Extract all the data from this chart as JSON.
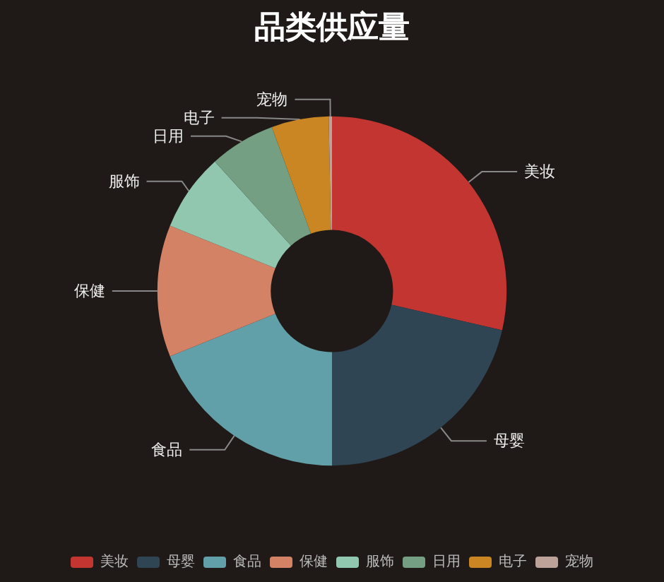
{
  "chart_data": {
    "type": "donut",
    "title": "品类供应量",
    "categories": [
      "美妆",
      "母婴",
      "食品",
      "保健",
      "服饰",
      "日用",
      "电子",
      "宠物"
    ],
    "values": [
      28.6,
      21.4,
      18.9,
      12.2,
      7.2,
      6.1,
      5.3,
      0.3
    ],
    "colors": [
      "#c23531",
      "#2f4554",
      "#61a0a8",
      "#d48265",
      "#91c7ae",
      "#749f83",
      "#ca8622",
      "#bda29a"
    ],
    "legend": "bottom"
  }
}
